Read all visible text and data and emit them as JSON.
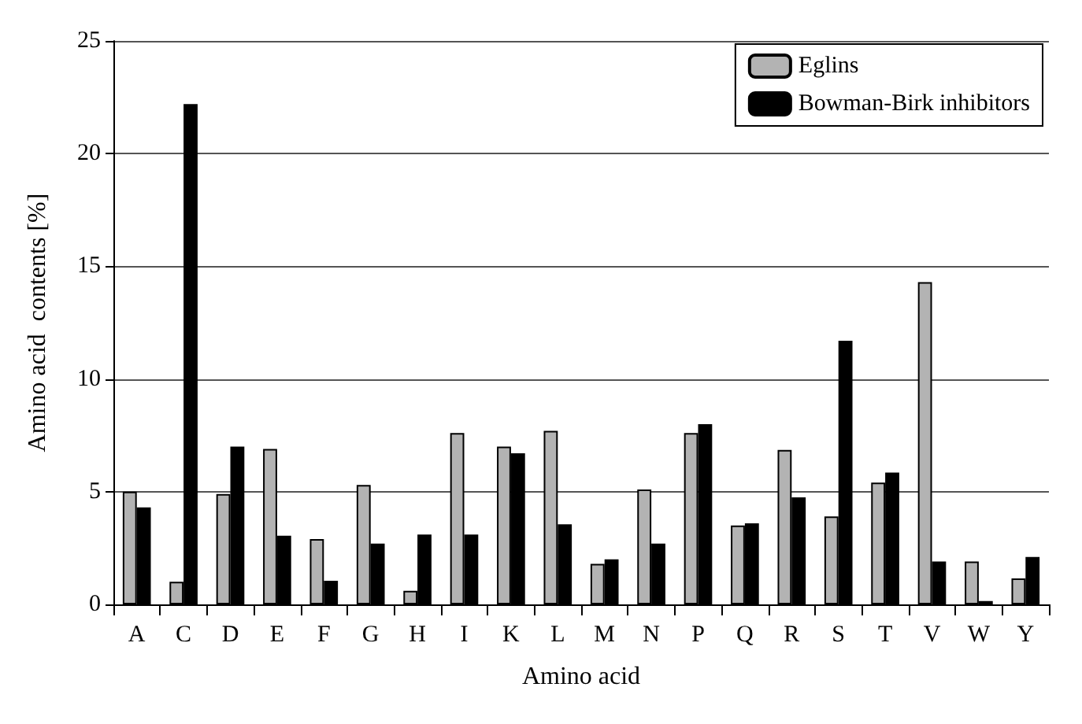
{
  "chart_data": {
    "type": "bar",
    "xlabel": "Amino acid",
    "ylabel": "Amino acid  contents [%]",
    "categories": [
      "A",
      "C",
      "D",
      "E",
      "F",
      "G",
      "H",
      "I",
      "K",
      "L",
      "M",
      "N",
      "P",
      "Q",
      "R",
      "S",
      "T",
      "V",
      "W",
      "Y"
    ],
    "series": [
      {
        "name": "Eglins",
        "color": "#b3b3b3",
        "values": [
          5.0,
          1.0,
          4.9,
          6.9,
          2.9,
          5.3,
          0.6,
          7.6,
          7.0,
          7.7,
          1.8,
          5.1,
          7.6,
          3.5,
          6.85,
          3.9,
          5.4,
          14.3,
          1.9,
          1.15
        ]
      },
      {
        "name": "Bowman-Birk inhibitors",
        "color": "#000000",
        "values": [
          4.3,
          22.2,
          7.0,
          3.05,
          1.05,
          2.7,
          3.1,
          3.1,
          6.7,
          3.55,
          2.0,
          2.7,
          8.0,
          3.6,
          4.75,
          11.7,
          5.85,
          1.9,
          0.15,
          2.1
        ]
      }
    ],
    "ylim": [
      0,
      25
    ],
    "yticks": [
      0,
      5,
      10,
      15,
      20,
      25
    ],
    "grid": "y",
    "legend": "top right"
  }
}
